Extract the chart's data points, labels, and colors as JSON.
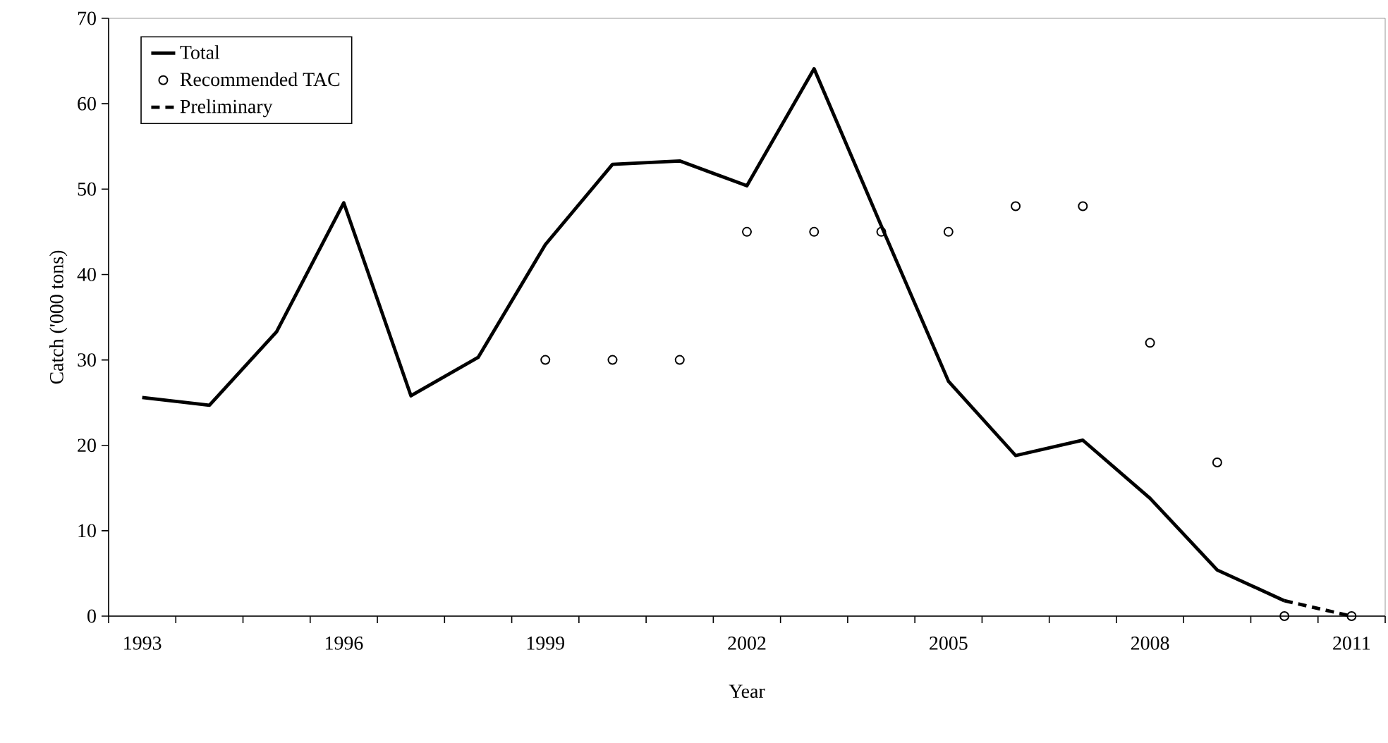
{
  "chart_data": {
    "type": "line",
    "xlabel": "Year",
    "ylabel": "Catch ('000 tons)",
    "categories": [
      "1993",
      null,
      null,
      "1996",
      null,
      null,
      "1999",
      null,
      null,
      "2002",
      null,
      null,
      "2005",
      null,
      null,
      "2008",
      null,
      null,
      "2011"
    ],
    "series": [
      {
        "name": "Total",
        "line_style": "solid",
        "marker": "none",
        "color": "#000000",
        "values": [
          25.6,
          24.7,
          33.3,
          48.4,
          25.8,
          30.3,
          43.5,
          52.9,
          53.3,
          50.4,
          64.1,
          45.7,
          27.5,
          18.8,
          20.6,
          13.8,
          5.4,
          1.8,
          null
        ]
      },
      {
        "name": "Recommended TAC",
        "type": "scatter",
        "marker": "circle",
        "color": "#000000",
        "values": [
          null,
          null,
          null,
          null,
          null,
          null,
          30,
          30,
          30,
          45,
          45,
          45,
          45,
          48,
          48,
          32,
          18,
          0,
          0
        ]
      },
      {
        "name": "Preliminary",
        "line_style": "dashed",
        "marker": "none",
        "color": "#000000",
        "values": [
          null,
          null,
          null,
          null,
          null,
          null,
          null,
          null,
          null,
          null,
          null,
          null,
          null,
          null,
          null,
          null,
          null,
          1.8,
          0
        ]
      }
    ],
    "ylim": [
      0,
      70
    ],
    "yticks": [
      0,
      10,
      20,
      30,
      40,
      50,
      60,
      70
    ],
    "legend": "top left"
  }
}
